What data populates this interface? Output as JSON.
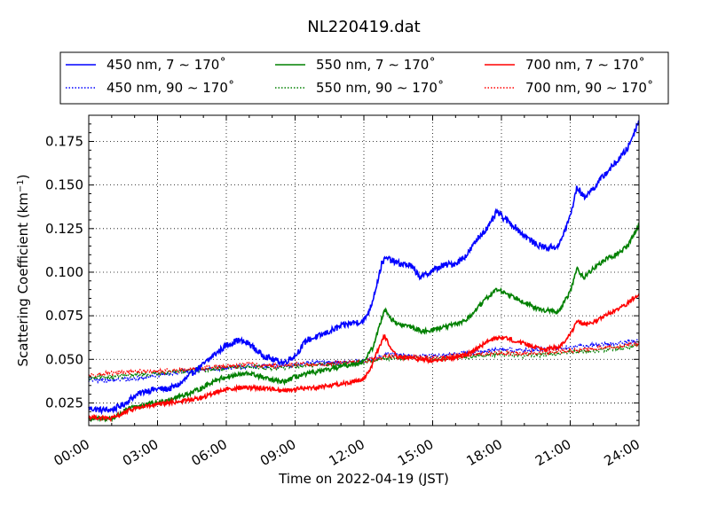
{
  "chart_data": {
    "type": "line",
    "title": "NL220419.dat",
    "xlabel": "Time on 2022-04-19 (JST)",
    "ylabel_main": "Scattering Coefficient (km",
    "ylabel_sup": "−1",
    "ylabel_end": ")",
    "x_unit": "hour",
    "xlim": [
      0,
      24
    ],
    "ylim": [
      0.012,
      0.19
    ],
    "x_ticks": [
      0,
      3,
      6,
      9,
      12,
      15,
      18,
      21,
      24
    ],
    "x_tick_labels": [
      "00:00",
      "03:00",
      "06:00",
      "09:00",
      "12:00",
      "15:00",
      "18:00",
      "21:00",
      "24:00"
    ],
    "y_ticks": [
      0.025,
      0.05,
      0.075,
      0.1,
      0.125,
      0.15,
      0.175
    ],
    "y_tick_labels": [
      "0.025",
      "0.050",
      "0.075",
      "0.100",
      "0.125",
      "0.150",
      "0.175"
    ],
    "grid": true,
    "legend_position": "top",
    "series": [
      {
        "name": "450 nm, 7 ∼ 170˚",
        "color": "#0000ff",
        "style": "solid",
        "noise": 0.0018,
        "points": [
          [
            0,
            0.022
          ],
          [
            0.5,
            0.021
          ],
          [
            1,
            0.021
          ],
          [
            1.5,
            0.024
          ],
          [
            2,
            0.029
          ],
          [
            2.5,
            0.032
          ],
          [
            3,
            0.033
          ],
          [
            3.5,
            0.033
          ],
          [
            4,
            0.036
          ],
          [
            4.5,
            0.042
          ],
          [
            5,
            0.047
          ],
          [
            5.5,
            0.053
          ],
          [
            6,
            0.058
          ],
          [
            6.5,
            0.061
          ],
          [
            7,
            0.059
          ],
          [
            7.5,
            0.053
          ],
          [
            8,
            0.05
          ],
          [
            8.5,
            0.048
          ],
          [
            9,
            0.052
          ],
          [
            9.5,
            0.061
          ],
          [
            10,
            0.063
          ],
          [
            10.5,
            0.066
          ],
          [
            11,
            0.069
          ],
          [
            11.5,
            0.071
          ],
          [
            12,
            0.072
          ],
          [
            12.3,
            0.08
          ],
          [
            12.6,
            0.095
          ],
          [
            12.8,
            0.106
          ],
          [
            13,
            0.108
          ],
          [
            13.5,
            0.105
          ],
          [
            14,
            0.104
          ],
          [
            14.5,
            0.097
          ],
          [
            15,
            0.101
          ],
          [
            15.5,
            0.104
          ],
          [
            16,
            0.105
          ],
          [
            16.5,
            0.11
          ],
          [
            17,
            0.12
          ],
          [
            17.5,
            0.127
          ],
          [
            17.8,
            0.135
          ],
          [
            18,
            0.132
          ],
          [
            18.5,
            0.127
          ],
          [
            19,
            0.121
          ],
          [
            19.5,
            0.116
          ],
          [
            20,
            0.114
          ],
          [
            20.5,
            0.115
          ],
          [
            21,
            0.132
          ],
          [
            21.3,
            0.149
          ],
          [
            21.6,
            0.143
          ],
          [
            22,
            0.148
          ],
          [
            22.5,
            0.156
          ],
          [
            23,
            0.163
          ],
          [
            23.5,
            0.171
          ],
          [
            24,
            0.187
          ]
        ]
      },
      {
        "name": "450 nm, 90 ∼ 170˚",
        "color": "#0000ff",
        "style": "dotted",
        "noise": 0.0012,
        "points": [
          [
            0,
            0.038
          ],
          [
            1,
            0.038
          ],
          [
            2,
            0.039
          ],
          [
            3,
            0.041
          ],
          [
            4,
            0.043
          ],
          [
            5,
            0.044
          ],
          [
            6,
            0.045
          ],
          [
            7,
            0.046
          ],
          [
            8,
            0.046
          ],
          [
            9,
            0.047
          ],
          [
            10,
            0.048
          ],
          [
            11,
            0.048
          ],
          [
            12,
            0.049
          ],
          [
            13,
            0.053
          ],
          [
            14,
            0.052
          ],
          [
            15,
            0.052
          ],
          [
            16,
            0.053
          ],
          [
            17,
            0.054
          ],
          [
            18,
            0.056
          ],
          [
            19,
            0.055
          ],
          [
            20,
            0.056
          ],
          [
            21,
            0.057
          ],
          [
            22,
            0.058
          ],
          [
            23,
            0.059
          ],
          [
            24,
            0.061
          ]
        ]
      },
      {
        "name": "550 nm, 7 ∼ 170˚",
        "color": "#008000",
        "style": "solid",
        "noise": 0.0013,
        "points": [
          [
            0,
            0.016
          ],
          [
            1,
            0.016
          ],
          [
            1.5,
            0.02
          ],
          [
            2,
            0.023
          ],
          [
            3,
            0.025
          ],
          [
            3.5,
            0.027
          ],
          [
            4,
            0.029
          ],
          [
            4.5,
            0.031
          ],
          [
            5,
            0.034
          ],
          [
            5.5,
            0.038
          ],
          [
            6,
            0.04
          ],
          [
            6.5,
            0.041
          ],
          [
            7,
            0.042
          ],
          [
            7.5,
            0.04
          ],
          [
            8,
            0.038
          ],
          [
            8.5,
            0.037
          ],
          [
            9,
            0.04
          ],
          [
            10,
            0.043
          ],
          [
            10.5,
            0.044
          ],
          [
            11,
            0.046
          ],
          [
            11.5,
            0.047
          ],
          [
            12,
            0.049
          ],
          [
            12.4,
            0.057
          ],
          [
            12.7,
            0.07
          ],
          [
            12.9,
            0.079
          ],
          [
            13.2,
            0.073
          ],
          [
            13.5,
            0.07
          ],
          [
            14,
            0.069
          ],
          [
            14.5,
            0.066
          ],
          [
            15,
            0.067
          ],
          [
            16,
            0.07
          ],
          [
            16.5,
            0.073
          ],
          [
            17,
            0.08
          ],
          [
            17.5,
            0.087
          ],
          [
            17.8,
            0.09
          ],
          [
            18.2,
            0.088
          ],
          [
            19,
            0.083
          ],
          [
            19.5,
            0.079
          ],
          [
            20,
            0.078
          ],
          [
            20.5,
            0.077
          ],
          [
            21,
            0.089
          ],
          [
            21.3,
            0.102
          ],
          [
            21.6,
            0.097
          ],
          [
            22,
            0.102
          ],
          [
            22.5,
            0.107
          ],
          [
            23,
            0.11
          ],
          [
            23.5,
            0.115
          ],
          [
            24,
            0.127
          ]
        ]
      },
      {
        "name": "550 nm, 90 ∼ 170˚",
        "color": "#008000",
        "style": "dotted",
        "noise": 0.0012,
        "points": [
          [
            0,
            0.039
          ],
          [
            1,
            0.04
          ],
          [
            2,
            0.041
          ],
          [
            3,
            0.042
          ],
          [
            4,
            0.043
          ],
          [
            5,
            0.044
          ],
          [
            6,
            0.045
          ],
          [
            7,
            0.046
          ],
          [
            8,
            0.045
          ],
          [
            9,
            0.046
          ],
          [
            10,
            0.047
          ],
          [
            11,
            0.047
          ],
          [
            12,
            0.048
          ],
          [
            13,
            0.051
          ],
          [
            14,
            0.051
          ],
          [
            15,
            0.05
          ],
          [
            16,
            0.051
          ],
          [
            17,
            0.052
          ],
          [
            18,
            0.053
          ],
          [
            19,
            0.052
          ],
          [
            20,
            0.053
          ],
          [
            21,
            0.054
          ],
          [
            22,
            0.055
          ],
          [
            23,
            0.056
          ],
          [
            24,
            0.058
          ]
        ]
      },
      {
        "name": "700 nm, 7 ∼ 170˚",
        "color": "#ff0000",
        "style": "solid",
        "noise": 0.0012,
        "points": [
          [
            0,
            0.017
          ],
          [
            1,
            0.016
          ],
          [
            1.5,
            0.019
          ],
          [
            2,
            0.022
          ],
          [
            3,
            0.024
          ],
          [
            4,
            0.026
          ],
          [
            5,
            0.028
          ],
          [
            5.5,
            0.031
          ],
          [
            6,
            0.033
          ],
          [
            7,
            0.034
          ],
          [
            8,
            0.033
          ],
          [
            8.5,
            0.032
          ],
          [
            9,
            0.033
          ],
          [
            10,
            0.034
          ],
          [
            11,
            0.036
          ],
          [
            11.5,
            0.037
          ],
          [
            12,
            0.039
          ],
          [
            12.3,
            0.045
          ],
          [
            12.6,
            0.055
          ],
          [
            12.9,
            0.064
          ],
          [
            13.2,
            0.055
          ],
          [
            13.5,
            0.051
          ],
          [
            14,
            0.051
          ],
          [
            15,
            0.049
          ],
          [
            16,
            0.051
          ],
          [
            16.5,
            0.053
          ],
          [
            17,
            0.057
          ],
          [
            17.5,
            0.061
          ],
          [
            18,
            0.063
          ],
          [
            18.5,
            0.061
          ],
          [
            19,
            0.059
          ],
          [
            19.5,
            0.057
          ],
          [
            20,
            0.056
          ],
          [
            20.5,
            0.057
          ],
          [
            21,
            0.064
          ],
          [
            21.3,
            0.072
          ],
          [
            21.6,
            0.07
          ],
          [
            22,
            0.071
          ],
          [
            22.5,
            0.075
          ],
          [
            23,
            0.078
          ],
          [
            23.5,
            0.082
          ],
          [
            24,
            0.088
          ]
        ]
      },
      {
        "name": "700 nm, 90 ∼ 170˚",
        "color": "#ff0000",
        "style": "dotted",
        "noise": 0.0012,
        "points": [
          [
            0,
            0.041
          ],
          [
            1,
            0.042
          ],
          [
            2,
            0.043
          ],
          [
            3,
            0.043
          ],
          [
            4,
            0.044
          ],
          [
            5,
            0.045
          ],
          [
            6,
            0.046
          ],
          [
            7,
            0.047
          ],
          [
            8,
            0.046
          ],
          [
            9,
            0.047
          ],
          [
            10,
            0.047
          ],
          [
            11,
            0.048
          ],
          [
            12,
            0.049
          ],
          [
            13,
            0.052
          ],
          [
            14,
            0.051
          ],
          [
            15,
            0.051
          ],
          [
            16,
            0.052
          ],
          [
            17,
            0.053
          ],
          [
            18,
            0.054
          ],
          [
            19,
            0.053
          ],
          [
            20,
            0.054
          ],
          [
            21,
            0.055
          ],
          [
            22,
            0.056
          ],
          [
            23,
            0.057
          ],
          [
            24,
            0.059
          ]
        ]
      }
    ]
  }
}
